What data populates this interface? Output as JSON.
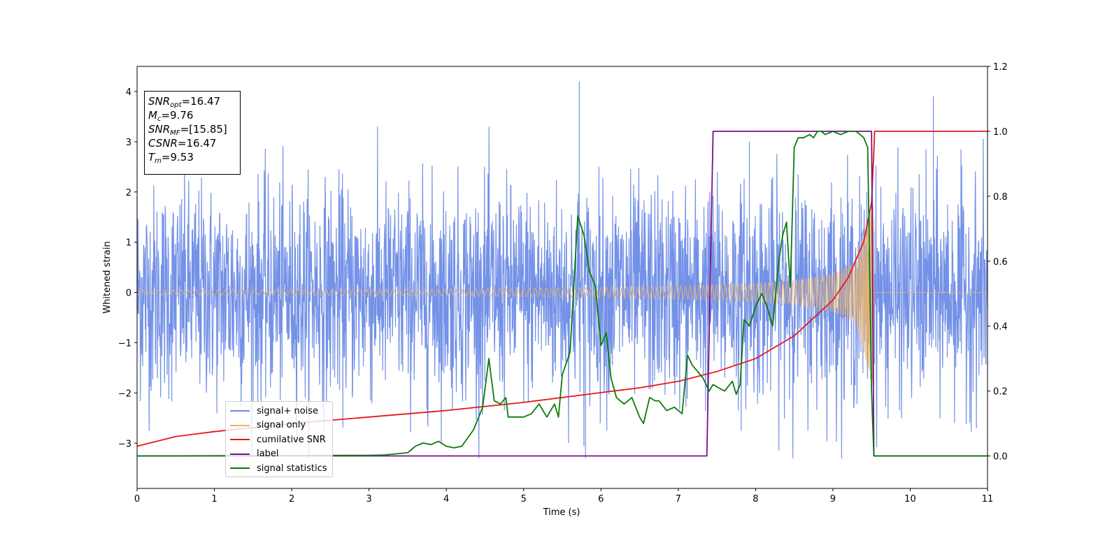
{
  "chart_data": {
    "type": "line",
    "xlabel": "Time (s)",
    "ylabel": "Whitened strain",
    "xlim": [
      0,
      11
    ],
    "ylim": [
      -3.9,
      4.5
    ],
    "y2lim": [
      -0.1,
      1.2
    ],
    "x_ticks": [
      "0",
      "1",
      "2",
      "3",
      "4",
      "5",
      "6",
      "7",
      "8",
      "9",
      "10",
      "11"
    ],
    "y_ticks": [
      "−3",
      "−2",
      "−1",
      "0",
      "1",
      "2",
      "3",
      "4"
    ],
    "y2_ticks": [
      "0.0",
      "0.2",
      "0.4",
      "0.6",
      "0.8",
      "1.0",
      "1.2"
    ],
    "legend_location": "lower-left",
    "annotation": {
      "snr_opt": "16.47",
      "mc": "9.76",
      "snr_mf": "[15.85]",
      "csnr": "16.47",
      "tm": "9.53"
    },
    "series": [
      {
        "name": "signal+ noise",
        "color": "#6b8be6",
        "axis": "left",
        "description_of_envelope": "dense noise, approx mean 0, peaks near ±3.5",
        "x": [
          0,
          5.72,
          5.8,
          7.92,
          10.3
        ],
        "values": [
          1.9,
          4.2,
          -3.3,
          3.0,
          3.9
        ]
      },
      {
        "name": "signal only",
        "color": "#e8b36f",
        "axis": "left",
        "x": [
          0,
          2,
          4,
          6,
          7,
          8,
          8.5,
          9,
          9.3,
          9.5,
          9.53,
          9.6,
          11
        ],
        "amplitude": [
          0.05,
          0.06,
          0.07,
          0.1,
          0.13,
          0.18,
          0.24,
          0.38,
          0.6,
          1.8,
          2.6,
          0.0,
          0.0
        ]
      },
      {
        "name": "cumilative SNR",
        "color": "#e8171b",
        "axis": "right",
        "x": [
          0,
          0.5,
          1,
          2,
          3,
          4,
          5,
          6,
          6.5,
          7,
          7.5,
          8,
          8.5,
          9,
          9.2,
          9.4,
          9.5,
          9.53,
          9.54,
          11
        ],
        "values": [
          0.03,
          0.06,
          0.075,
          0.1,
          0.12,
          0.14,
          0.165,
          0.195,
          0.21,
          0.23,
          0.26,
          0.3,
          0.37,
          0.48,
          0.55,
          0.66,
          0.78,
          0.94,
          1.0,
          1.0
        ]
      },
      {
        "name": "label",
        "color": "#7b0f8e",
        "axis": "right",
        "x": [
          0,
          7.37,
          7.45,
          9.5,
          9.53,
          11
        ],
        "values": [
          0,
          0,
          1,
          1,
          0,
          0
        ]
      },
      {
        "name": "signal statistics",
        "color": "#0b7a0b",
        "axis": "right",
        "x": [
          0,
          3.0,
          3.2,
          3.5,
          3.6,
          3.7,
          3.8,
          3.9,
          4.0,
          4.1,
          4.2,
          4.35,
          4.42,
          4.47,
          4.55,
          4.62,
          4.7,
          4.77,
          4.8,
          5.0,
          5.1,
          5.2,
          5.3,
          5.4,
          5.45,
          5.5,
          5.6,
          5.7,
          5.78,
          5.85,
          5.93,
          6.0,
          6.07,
          6.13,
          6.2,
          6.3,
          6.4,
          6.5,
          6.55,
          6.63,
          6.7,
          6.75,
          6.85,
          6.95,
          7.05,
          7.12,
          7.18,
          7.25,
          7.32,
          7.4,
          7.45,
          7.52,
          7.6,
          7.7,
          7.75,
          7.8,
          7.85,
          7.92,
          8.0,
          8.08,
          8.15,
          8.22,
          8.3,
          8.35,
          8.4,
          8.45,
          8.5,
          8.55,
          8.62,
          8.7,
          8.75,
          8.8,
          8.85,
          8.9,
          9.0,
          9.1,
          9.2,
          9.3,
          9.4,
          9.45,
          9.5,
          9.53,
          9.58,
          11
        ],
        "values": [
          0.0,
          0.002,
          0.003,
          0.01,
          0.03,
          0.04,
          0.035,
          0.045,
          0.03,
          0.025,
          0.03,
          0.08,
          0.12,
          0.15,
          0.3,
          0.17,
          0.16,
          0.18,
          0.12,
          0.12,
          0.13,
          0.16,
          0.12,
          0.16,
          0.12,
          0.25,
          0.32,
          0.74,
          0.68,
          0.57,
          0.52,
          0.34,
          0.38,
          0.24,
          0.18,
          0.16,
          0.18,
          0.12,
          0.1,
          0.18,
          0.17,
          0.17,
          0.14,
          0.15,
          0.13,
          0.31,
          0.28,
          0.26,
          0.24,
          0.2,
          0.22,
          0.21,
          0.2,
          0.23,
          0.19,
          0.22,
          0.42,
          0.4,
          0.46,
          0.5,
          0.46,
          0.4,
          0.6,
          0.68,
          0.72,
          0.52,
          0.95,
          0.98,
          0.98,
          0.99,
          0.98,
          1.0,
          1.0,
          0.99,
          1.0,
          0.99,
          1.0,
          1.0,
          0.98,
          0.95,
          0.2,
          0.0,
          0.0,
          0.0
        ]
      }
    ]
  }
}
